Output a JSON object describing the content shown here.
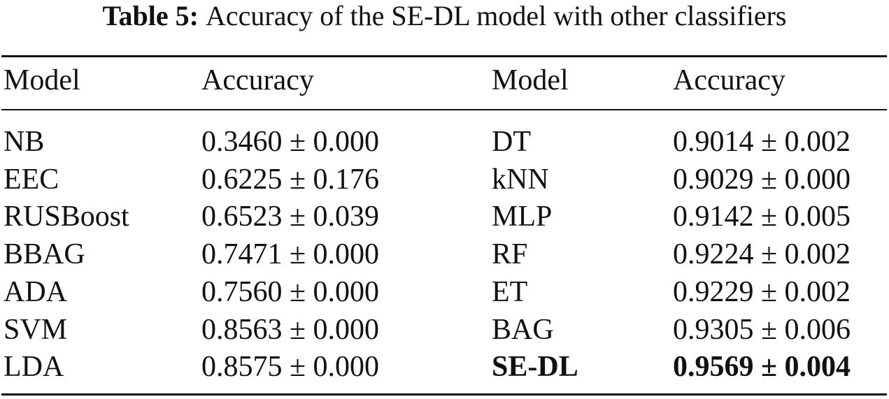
{
  "caption": {
    "label": "Table 5:",
    "text": "Accuracy of the SE-DL model with other classifiers"
  },
  "table": {
    "header": [
      "Model",
      "Accuracy",
      "Model",
      "Accuracy"
    ],
    "rows": [
      [
        "NB",
        "0.3460 ± 0.000",
        "DT",
        "0.9014 ± 0.002"
      ],
      [
        "EEC",
        "0.6225 ± 0.176",
        "kNN",
        "0.9029 ± 0.000"
      ],
      [
        "RUSBoost",
        "0.6523 ± 0.039",
        "MLP",
        "0.9142 ± 0.005"
      ],
      [
        "BBAG",
        "0.7471 ± 0.000",
        "RF",
        "0.9224 ± 0.002"
      ],
      [
        "ADA",
        "0.7560 ± 0.000",
        "ET",
        "0.9229 ± 0.002"
      ],
      [
        "SVM",
        "0.8563 ± 0.000",
        "BAG",
        "0.9305 ± 0.006"
      ],
      [
        "LDA",
        "0.8575 ± 0.000",
        "SE-DL",
        "0.9569 ± 0.004"
      ]
    ]
  }
}
